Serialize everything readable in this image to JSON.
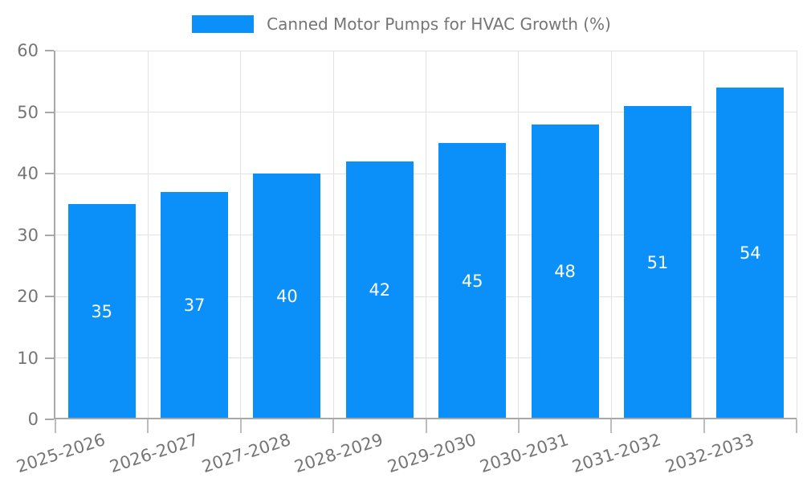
{
  "chart_data": {
    "type": "bar",
    "title": "Canned Motor Pumps for HVAC Growth (%)",
    "series_name": "Canned Motor Pumps for HVAC Growth (%)",
    "categories": [
      "2025-2026",
      "2026-2027",
      "2027-2028",
      "2028-2029",
      "2029-2030",
      "2030-2031",
      "2031-2032",
      "2032-2033"
    ],
    "values": [
      35,
      37,
      40,
      42,
      45,
      48,
      51,
      54
    ],
    "xlabel": "",
    "ylabel": "",
    "ylim": [
      0,
      60
    ],
    "yticks": [
      0,
      10,
      20,
      30,
      40,
      50,
      60
    ],
    "grid": true,
    "legend_position": "top-center",
    "bar_labels_inside": true,
    "colors": {
      "bar": "#0A90F8",
      "bar_label": "#ffffff",
      "text": "#757575",
      "axis": "#a8a8a8",
      "tick": "#bdbdbd",
      "grid": "#e2e2e2",
      "background": "#ffffff"
    }
  }
}
